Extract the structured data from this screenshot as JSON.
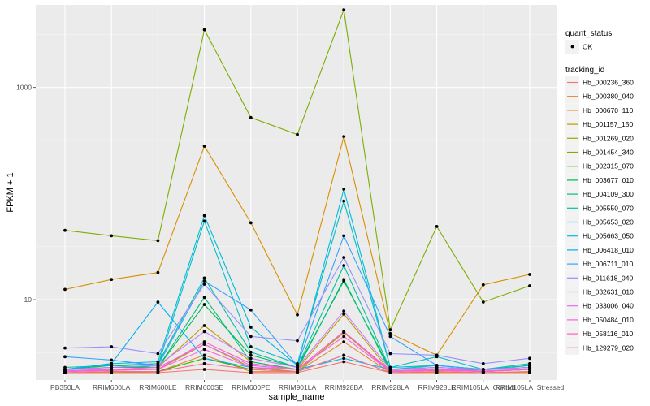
{
  "chart_data": {
    "type": "line",
    "title": "",
    "xlabel": "sample_name",
    "ylabel": "FPKM + 1",
    "yscale": "log10",
    "ylim": [
      1.75,
      6000
    ],
    "y_ticks": [
      {
        "value": 10,
        "label": "10"
      },
      {
        "value": 1000,
        "label": "1000"
      }
    ],
    "categories": [
      "PB350LA",
      "RRIM600LA",
      "RRIM600LE",
      "RRIM600SE",
      "RRIM600PE",
      "RRIM901LA",
      "RRIM928BA",
      "RRIM928LA",
      "RRIM928LE",
      "RRIM105LA_Control",
      "RRIM105LA_Stressed"
    ],
    "category_labels": [
      "PB350LA",
      "RRIM600LA",
      "RRIM600LE",
      "RRIM600SE",
      "RRIM600PE",
      "RRIM901LA",
      "RRIM928BA",
      "RRIM928LA",
      "RRIM928LE",
      "RRIM105LA_Control",
      "RRIM105LA_Stressed"
    ],
    "legend_shape": {
      "title": "quant_status",
      "entries": [
        "OK"
      ]
    },
    "legend_color_title": "tracking_id",
    "series": [
      {
        "name": "Hb_000236_360",
        "color": "#F8766D",
        "values": [
          2.05,
          2.05,
          2.05,
          2.2,
          2.05,
          2.05,
          2.6,
          2.05,
          2.05,
          2.05,
          2.05
        ]
      },
      {
        "name": "Hb_000380_040",
        "color": "#EA8331",
        "values": [
          2.05,
          2.05,
          2.1,
          3.0,
          2.1,
          2.1,
          4.0,
          2.05,
          2.05,
          2.05,
          2.05
        ]
      },
      {
        "name": "Hb_000670_110",
        "color": "#D89000",
        "values": [
          12.5,
          15.5,
          18,
          280,
          53,
          7.2,
          345,
          4.8,
          3.0,
          13.8,
          17.3
        ]
      },
      {
        "name": "Hb_001157_150",
        "color": "#C09B00",
        "values": [
          2.1,
          2.2,
          2.3,
          5.7,
          2.6,
          2.2,
          7.3,
          2.1,
          2.2,
          2.1,
          2.2
        ]
      },
      {
        "name": "Hb_001269_020",
        "color": "#A3A500",
        "values": [
          2.1,
          2.2,
          2.2,
          3.8,
          2.3,
          2.1,
          4.9,
          2.1,
          2.2,
          2.1,
          2.2
        ]
      },
      {
        "name": "Hb_001454_340",
        "color": "#7CAE00",
        "values": [
          45,
          40,
          36,
          3500,
          520,
          360,
          5400,
          5.2,
          49,
          9.5,
          13.5
        ]
      },
      {
        "name": "Hb_002315_070",
        "color": "#39B600",
        "values": [
          2.05,
          2.1,
          2.1,
          2.8,
          2.2,
          2.1,
          3.0,
          2.05,
          2.1,
          2.05,
          2.1
        ]
      },
      {
        "name": "Hb_003677_010",
        "color": "#00BB4E",
        "values": [
          2.2,
          2.4,
          2.3,
          9.0,
          3.0,
          2.3,
          15,
          2.2,
          2.3,
          2.2,
          2.4
        ]
      },
      {
        "name": "Hb_004109_300",
        "color": "#00BF7D",
        "values": [
          2.2,
          2.3,
          2.3,
          10.5,
          2.6,
          2.2,
          15.5,
          2.1,
          2.2,
          2.2,
          2.3
        ]
      },
      {
        "name": "Hb_005550_070",
        "color": "#00C1A3",
        "values": [
          2.3,
          2.4,
          2.5,
          16,
          3.2,
          2.3,
          21,
          2.2,
          2.4,
          2.2,
          2.4
        ]
      },
      {
        "name": "Hb_005653_020",
        "color": "#00BFC4",
        "values": [
          2.2,
          2.3,
          2.4,
          55,
          3.6,
          2.5,
          85,
          2.3,
          2.9,
          2.2,
          2.5
        ]
      },
      {
        "name": "Hb_005663_050",
        "color": "#00BAE0",
        "values": [
          2.2,
          2.5,
          2.6,
          62,
          5.5,
          2.4,
          110,
          2.3,
          2.4,
          2.2,
          2.3
        ]
      },
      {
        "name": "Hb_006418_010",
        "color": "#00B0F6",
        "values": [
          2.2,
          2.5,
          9.5,
          2.8,
          2.3,
          2.2,
          2.8,
          2.2,
          2.3,
          2.2,
          2.3
        ]
      },
      {
        "name": "Hb_006711_010",
        "color": "#35A2FF",
        "values": [
          2.9,
          2.7,
          2.4,
          15,
          8.0,
          2.4,
          40,
          4.5,
          2.4,
          2.2,
          2.3
        ]
      },
      {
        "name": "Hb_011618_040",
        "color": "#9590FF",
        "values": [
          3.5,
          3.6,
          3.1,
          14,
          4.5,
          4.1,
          25,
          3.1,
          3.0,
          2.5,
          2.8
        ]
      },
      {
        "name": "Hb_032631_010",
        "color": "#C77CFF",
        "values": [
          2.2,
          2.3,
          2.4,
          5.0,
          2.8,
          2.3,
          7.8,
          2.2,
          2.3,
          2.2,
          2.3
        ]
      },
      {
        "name": "Hb_033006_040",
        "color": "#E76BF3",
        "values": [
          2.15,
          2.2,
          2.3,
          3.8,
          2.4,
          2.2,
          5.0,
          2.15,
          2.2,
          2.15,
          2.2
        ]
      },
      {
        "name": "Hb_050484_010",
        "color": "#FA62DB",
        "values": [
          2.1,
          2.2,
          2.2,
          3.4,
          2.3,
          2.2,
          4.5,
          2.1,
          2.2,
          2.1,
          2.2
        ]
      },
      {
        "name": "Hb_058116_010",
        "color": "#FF62BC",
        "values": [
          2.1,
          2.15,
          2.2,
          4.0,
          2.5,
          2.2,
          5.0,
          2.1,
          2.15,
          2.1,
          2.2
        ]
      },
      {
        "name": "Hb_129279_020",
        "color": "#FF6C91",
        "values": [
          2.05,
          2.1,
          2.1,
          2.5,
          2.2,
          2.1,
          3.0,
          2.05,
          2.1,
          2.05,
          2.1
        ]
      }
    ]
  }
}
